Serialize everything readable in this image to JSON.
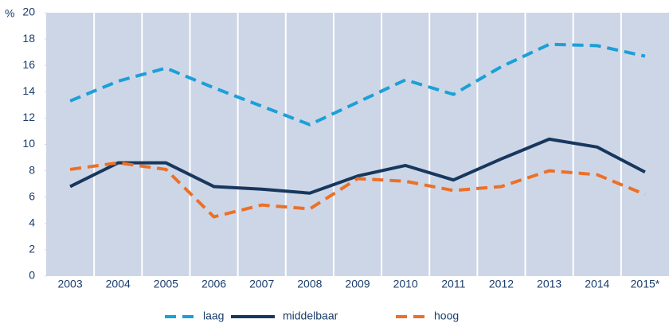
{
  "chart_data": {
    "type": "line",
    "y_label": "%",
    "categories": [
      "2003",
      "2004",
      "2005",
      "2006",
      "2007",
      "2008",
      "2009",
      "2010",
      "2011",
      "2012",
      "2013",
      "2014",
      "2015*"
    ],
    "series": [
      {
        "name": "laag",
        "color": "#1ba0d8",
        "dashed": true,
        "values": [
          13.3,
          14.8,
          15.8,
          14.3,
          12.9,
          11.5,
          13.2,
          14.9,
          13.8,
          15.9,
          17.6,
          17.5,
          16.7
        ]
      },
      {
        "name": "middelbaar",
        "color": "#17375e",
        "dashed": false,
        "values": [
          6.8,
          8.6,
          8.6,
          6.8,
          6.6,
          6.3,
          7.6,
          8.4,
          7.3,
          8.9,
          10.4,
          9.8,
          7.9
        ]
      },
      {
        "name": "hoog",
        "color": "#ec7027",
        "dashed": true,
        "values": [
          8.1,
          8.6,
          8.1,
          4.5,
          5.4,
          5.1,
          7.4,
          7.2,
          6.5,
          6.8,
          8.0,
          7.7,
          6.2
        ]
      }
    ],
    "ylim": [
      0,
      20
    ],
    "yticks": [
      0,
      2,
      4,
      6,
      8,
      10,
      12,
      14,
      16,
      18,
      20
    ],
    "grid": true,
    "background": "#cdd6e6",
    "legend": "bottom"
  }
}
